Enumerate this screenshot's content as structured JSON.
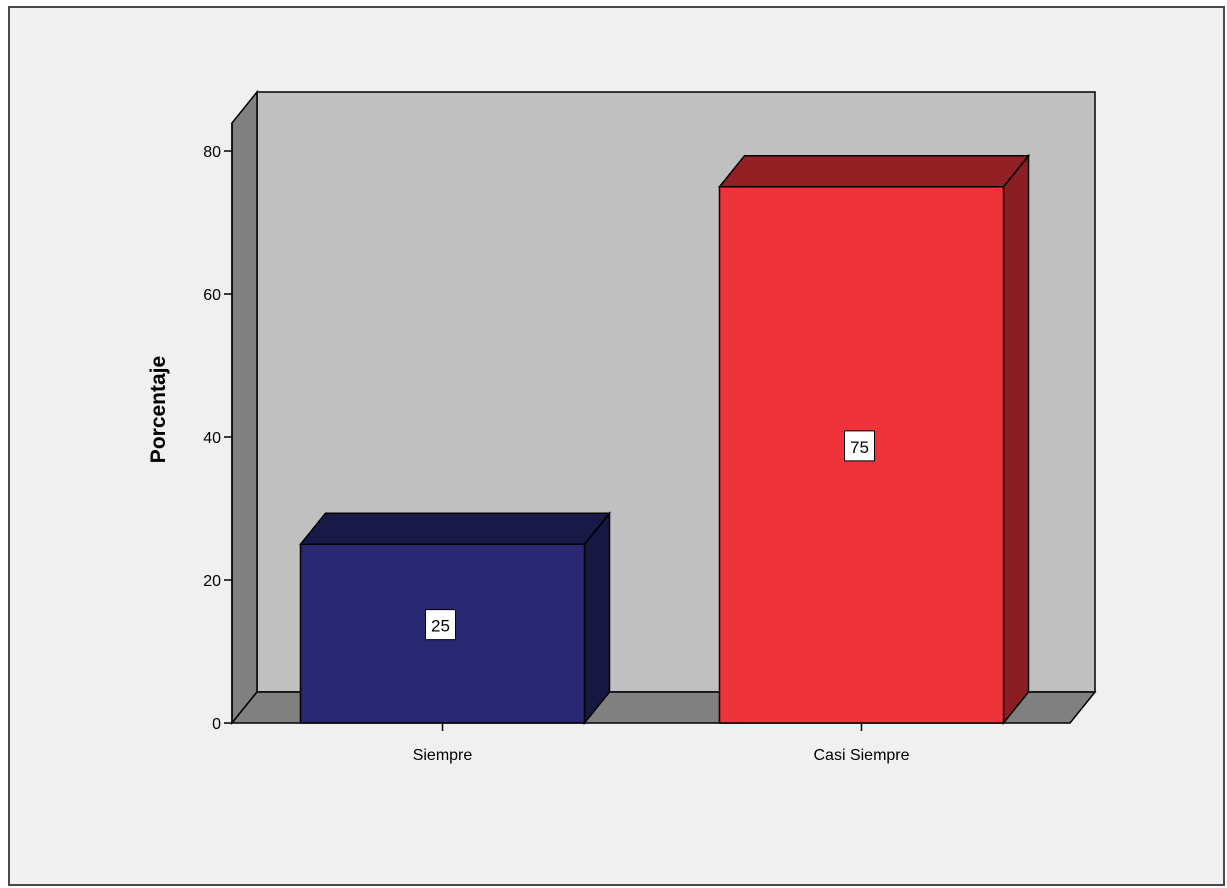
{
  "chart_data": {
    "type": "bar",
    "style": "3d",
    "title": "",
    "xlabel": "",
    "ylabel": "Porcentaje",
    "ylim": [
      0,
      80
    ],
    "yticks": [
      0,
      20,
      40,
      60,
      80
    ],
    "grid": false,
    "legend": "none",
    "categories": [
      "Siempre",
      "Casi Siempre"
    ],
    "values": [
      25,
      75
    ],
    "data_labels": [
      "25",
      "75"
    ],
    "colors": {
      "bars": [
        "#282873",
        "#ef333b"
      ],
      "background_wall": "#c0c0c0",
      "side_wall_floor": "#808080",
      "page_background": "#f0f0f0"
    }
  }
}
